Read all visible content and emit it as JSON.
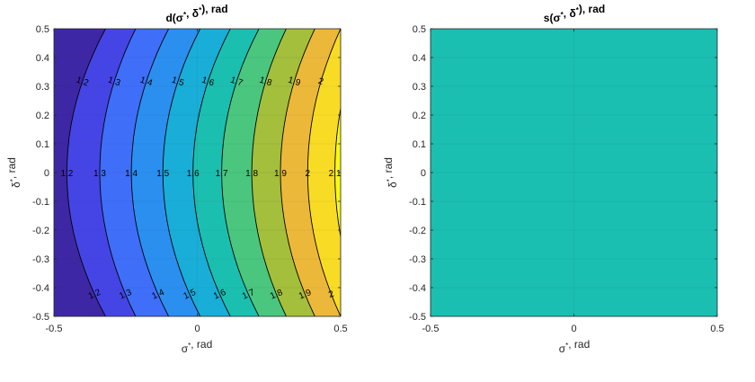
{
  "chart_data": [
    {
      "type": "contour",
      "title": "d(σ*, δ*), rad",
      "xlabel": "σ*, rad",
      "ylabel": "δ*, rad",
      "xlim": [
        -0.5,
        0.5
      ],
      "ylim": [
        -0.5,
        0.5
      ],
      "x_ticks": [
        "-0.5",
        "0",
        "0.5"
      ],
      "y_ticks": [
        "-0.5",
        "-0.4",
        "-0.3",
        "-0.2",
        "-0.1",
        "0",
        "0.1",
        "0.2",
        "0.3",
        "0.4",
        "0.5"
      ],
      "grid": true,
      "levels": [
        1.2,
        1.3,
        1.4,
        1.5,
        1.6,
        1.7,
        1.8,
        1.9,
        2.0,
        2.1
      ],
      "level_labels": [
        "1.2",
        "1.3",
        "1.4",
        "1.5",
        "1.6",
        "1.7",
        "1.8",
        "1.9",
        "2",
        "2.1"
      ],
      "level_x_at_delta0": [
        -0.455,
        -0.34,
        -0.23,
        -0.12,
        -0.015,
        0.085,
        0.19,
        0.29,
        0.385,
        0.48
      ],
      "level_x_at_delta_edge": [
        -0.32,
        -0.215,
        -0.1,
        0.01,
        0.115,
        0.215,
        0.31,
        0.41,
        0.5,
        0.58
      ],
      "band_colors": [
        "#3e27a4",
        "#4545e6",
        "#3f6ef9",
        "#2b8ff0",
        "#19aed8",
        "#1bbfb0",
        "#4ac67f",
        "#a3bf3b",
        "#ecb83a",
        "#f8db24",
        "#f9fa13"
      ]
    },
    {
      "type": "heatmap",
      "title": "s(σ*, δ*), rad",
      "xlabel": "σ*, rad",
      "ylabel": "δ*, rad",
      "xlim": [
        -0.5,
        0.5
      ],
      "ylim": [
        -0.5,
        0.5
      ],
      "x_ticks": [
        "-0.5",
        "0",
        "0.5"
      ],
      "y_ticks": [
        "-0.5",
        "-0.4",
        "-0.3",
        "-0.2",
        "-0.1",
        "0",
        "0.1",
        "0.2",
        "0.3",
        "0.4",
        "0.5"
      ],
      "grid": true,
      "fill_color": "#1abfb2"
    }
  ]
}
